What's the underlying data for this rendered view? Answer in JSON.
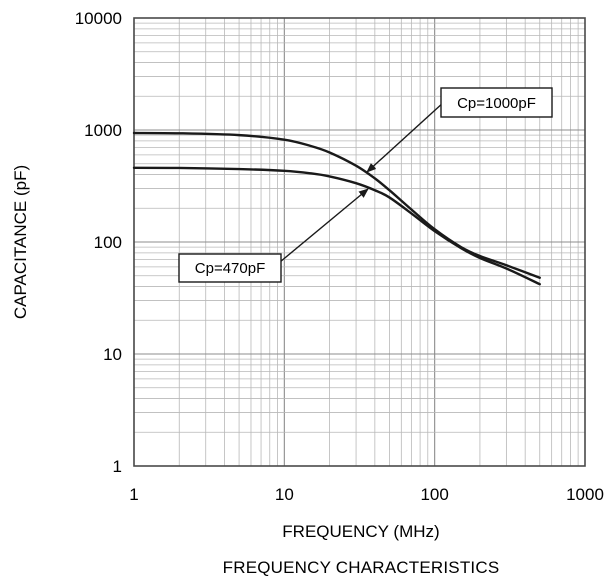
{
  "chart_data": {
    "type": "line",
    "title": "",
    "caption": "FREQUENCY CHARACTERISTICS",
    "xlabel": "FREQUENCY (MHz)",
    "ylabel": "CAPACITANCE (pF)",
    "x_scale": "log",
    "y_scale": "log",
    "xlim": [
      1,
      1000
    ],
    "ylim": [
      1,
      10000
    ],
    "x_ticks": [
      "1",
      "10",
      "100",
      "1000"
    ],
    "y_ticks": [
      "1",
      "10",
      "100",
      "1000",
      "10000"
    ],
    "grid": true,
    "series": [
      {
        "name": "Cp=1000pF",
        "points": [
          [
            1,
            940
          ],
          [
            2,
            935
          ],
          [
            5,
            900
          ],
          [
            10,
            820
          ],
          [
            15,
            720
          ],
          [
            20,
            630
          ],
          [
            30,
            480
          ],
          [
            40,
            370
          ],
          [
            50,
            290
          ],
          [
            70,
            195
          ],
          [
            100,
            130
          ],
          [
            150,
            90
          ],
          [
            200,
            75
          ],
          [
            300,
            62
          ],
          [
            500,
            48
          ]
        ]
      },
      {
        "name": "Cp=470pF",
        "points": [
          [
            1,
            460
          ],
          [
            2,
            458
          ],
          [
            5,
            448
          ],
          [
            10,
            432
          ],
          [
            15,
            410
          ],
          [
            20,
            385
          ],
          [
            30,
            335
          ],
          [
            40,
            290
          ],
          [
            50,
            250
          ],
          [
            70,
            180
          ],
          [
            100,
            125
          ],
          [
            150,
            88
          ],
          [
            200,
            72
          ],
          [
            300,
            58
          ],
          [
            500,
            42
          ]
        ]
      }
    ],
    "annotations": [
      {
        "label": "Cp=1000pF",
        "target": [
          35,
          420
        ]
      },
      {
        "label": "Cp=470pF",
        "target": [
          37,
          290
        ]
      }
    ]
  }
}
